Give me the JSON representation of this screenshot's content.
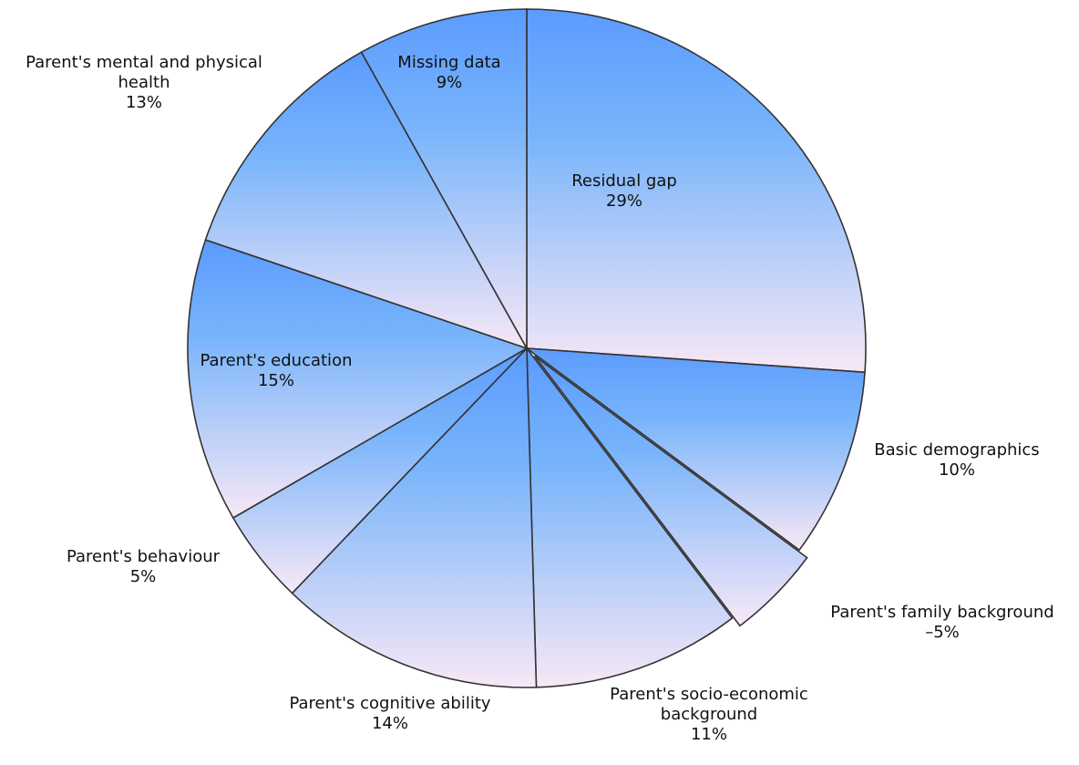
{
  "chart_data": {
    "type": "pie",
    "categories": [
      "Residual gap",
      "Basic demographics",
      "Parent's family background",
      "Parent's socio-economic background",
      "Parent's cognitive ability",
      "Parent's behaviour",
      "Parent's education",
      "Parent's mental and physical health",
      "Missing data"
    ],
    "values": [
      29,
      10,
      -5,
      11,
      14,
      5,
      15,
      13,
      9
    ],
    "value_labels": [
      "29%",
      "10%",
      "–5%",
      "11%",
      "14%",
      "5%",
      "15%",
      "13%",
      "9%"
    ],
    "exploded": [
      2
    ],
    "colors": [
      "#5b9bff",
      "#f8e8f6"
    ]
  }
}
